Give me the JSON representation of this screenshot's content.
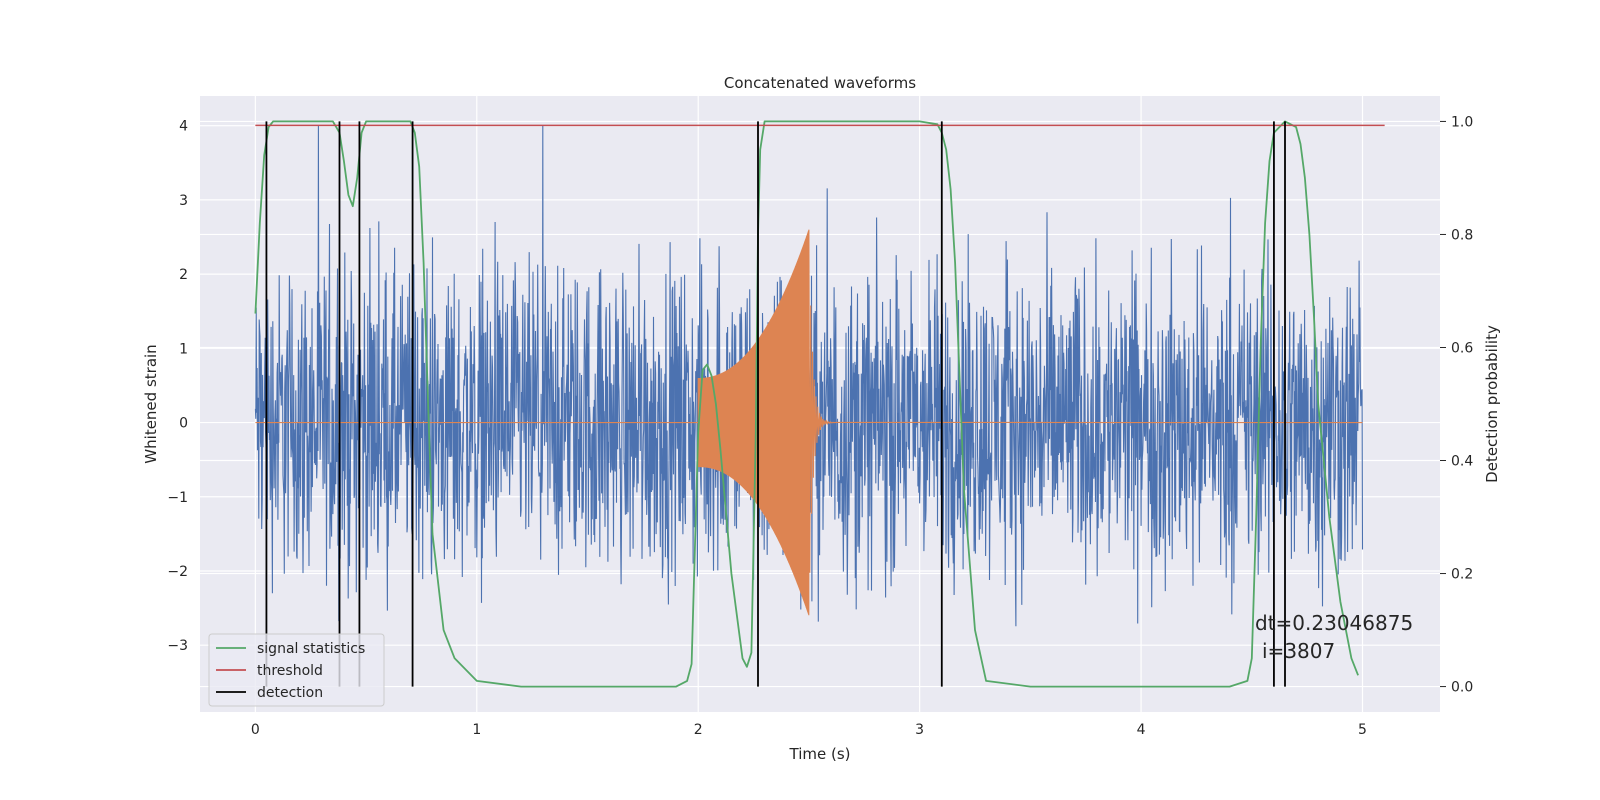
{
  "chart_data": {
    "type": "line",
    "title": "Concatenated waveforms",
    "xlabel": "Time (s)",
    "ylabel": "Whitened strain",
    "y2label": "Detection probability",
    "xlim": [
      -0.25,
      5.35
    ],
    "ylim": [
      -3.9,
      4.4
    ],
    "y2lim": [
      -0.045,
      1.045
    ],
    "xticks": [
      0,
      1,
      2,
      3,
      4,
      5
    ],
    "yticks": [
      -3,
      -2,
      -1,
      0,
      1,
      2,
      3,
      4
    ],
    "y2ticks": [
      0.0,
      0.2,
      0.4,
      0.6,
      0.8,
      1.0
    ],
    "grid": true,
    "legend_position": "bottom-left",
    "series": [
      {
        "name": "",
        "color": "#4c72b0",
        "description_values": "whitened strain noise, x from 0 to 5 s, amplitude mostly within +/-2 with peaks near +/-3.5",
        "x_range": [
          0,
          5
        ],
        "amplitude": 1.0
      },
      {
        "name": "",
        "color": "#dd8452",
        "x_range": [
          2.0,
          2.5
        ],
        "chirp": {
          "start": 2.0,
          "merger": 2.5,
          "amp_start": 0.6,
          "amp_peak": 2.6
        }
      },
      {
        "name": "signal statistics",
        "color": "#55a868",
        "axis": "right",
        "x": [
          0,
          0.02,
          0.04,
          0.06,
          0.08,
          0.1,
          0.2,
          0.3,
          0.35,
          0.38,
          0.4,
          0.42,
          0.44,
          0.46,
          0.48,
          0.5,
          0.52,
          0.6,
          0.7,
          0.72,
          0.74,
          0.76,
          0.78,
          0.8,
          0.85,
          0.9,
          1.0,
          1.2,
          1.5,
          1.8,
          1.9,
          1.95,
          1.97,
          2.0,
          2.02,
          2.04,
          2.06,
          2.08,
          2.1,
          2.15,
          2.2,
          2.22,
          2.24,
          2.26,
          2.27,
          2.28,
          2.3,
          2.5,
          2.8,
          3.0,
          3.08,
          3.1,
          3.12,
          3.14,
          3.16,
          3.18,
          3.2,
          3.25,
          3.3,
          3.5,
          4.0,
          4.4,
          4.48,
          4.5,
          4.52,
          4.54,
          4.56,
          4.58,
          4.6,
          4.65,
          4.7,
          4.72,
          4.74,
          4.76,
          4.78,
          4.8,
          4.85,
          4.9,
          4.95,
          4.98
        ],
        "values": [
          0.66,
          0.82,
          0.94,
          0.99,
          1.0,
          1.0,
          1.0,
          1.0,
          1.0,
          0.98,
          0.93,
          0.87,
          0.85,
          0.9,
          0.98,
          1.0,
          1.0,
          1.0,
          1.0,
          0.98,
          0.92,
          0.75,
          0.5,
          0.27,
          0.1,
          0.05,
          0.01,
          0.0,
          0.0,
          0.0,
          0.0,
          0.01,
          0.04,
          0.45,
          0.56,
          0.57,
          0.55,
          0.5,
          0.42,
          0.2,
          0.05,
          0.035,
          0.06,
          0.45,
          0.8,
          0.95,
          1.0,
          1.0,
          1.0,
          1.0,
          0.995,
          0.98,
          0.95,
          0.88,
          0.75,
          0.55,
          0.35,
          0.1,
          0.01,
          0.0,
          0.0,
          0.0,
          0.01,
          0.05,
          0.3,
          0.6,
          0.82,
          0.93,
          0.98,
          1.0,
          0.99,
          0.96,
          0.9,
          0.8,
          0.66,
          0.5,
          0.3,
          0.15,
          0.05,
          0.02
        ]
      },
      {
        "name": "threshold",
        "color": "#c44e52",
        "axis": "right",
        "x": [
          0,
          5.1
        ],
        "values": [
          0.993,
          0.993
        ]
      },
      {
        "name": "detection",
        "color": "#000000",
        "axis": "right",
        "vlines": [
          0.05,
          0.38,
          0.47,
          0.71,
          2.27,
          3.1,
          4.6,
          4.65
        ],
        "ymin": 0.0,
        "ymax": 1.0
      }
    ],
    "annotations": [
      "dt=0.23046875",
      "i=3807"
    ]
  }
}
